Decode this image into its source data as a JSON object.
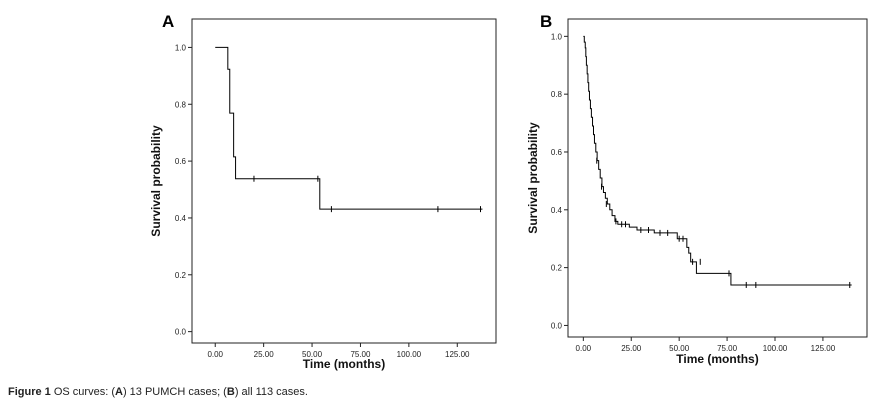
{
  "caption": {
    "label": "Figure 1",
    "text_a": " OS curves: (",
    "letter_a": "A",
    "text_b": ") 13 PUMCH cases; (",
    "letter_b": "B",
    "text_c": ") all 113 cases."
  },
  "chart_data": [
    {
      "type": "line",
      "panel_label": "A",
      "title": "",
      "xlabel": "Time (months)",
      "ylabel": "Survival probability",
      "xlim": [
        -12,
        145
      ],
      "ylim": [
        -0.04,
        1.1
      ],
      "x_ticks": [
        0,
        25,
        50,
        75,
        100,
        125
      ],
      "x_tick_labels": [
        "0.00",
        "25.00",
        "50.00",
        "75.00",
        "100.00",
        "125.00"
      ],
      "y_ticks": [
        0.0,
        0.2,
        0.4,
        0.6,
        0.8,
        1.0
      ],
      "y_tick_labels": [
        "0.0",
        "0.2",
        "0.4",
        "0.6",
        "0.8",
        "1.0"
      ],
      "grid": false,
      "color": "#000000",
      "steps": [
        {
          "x": 0,
          "y": 1.0
        },
        {
          "x": 6.5,
          "y": 0.923
        },
        {
          "x": 7.5,
          "y": 0.769
        },
        {
          "x": 9.5,
          "y": 0.615
        },
        {
          "x": 10.5,
          "y": 0.538
        },
        {
          "x": 54,
          "y": 0.431
        },
        {
          "x": 138,
          "y": 0.431
        }
      ],
      "censored": [
        {
          "x": 20,
          "y": 0.538
        },
        {
          "x": 53,
          "y": 0.538
        },
        {
          "x": 60,
          "y": 0.431
        },
        {
          "x": 115,
          "y": 0.431
        },
        {
          "x": 137,
          "y": 0.431
        }
      ]
    },
    {
      "type": "line",
      "panel_label": "B",
      "title": "",
      "xlabel": "Time (months)",
      "ylabel": "Survival probability",
      "xlim": [
        -8,
        148
      ],
      "ylim": [
        -0.04,
        1.06
      ],
      "x_ticks": [
        0,
        25,
        50,
        75,
        100,
        125
      ],
      "x_tick_labels": [
        "0.00",
        "25.00",
        "50.00",
        "75.00",
        "100.00",
        "125.00"
      ],
      "y_ticks": [
        0.0,
        0.2,
        0.4,
        0.6,
        0.8,
        1.0
      ],
      "y_tick_labels": [
        "0.0",
        "0.2",
        "0.4",
        "0.6",
        "0.8",
        "1.0"
      ],
      "grid": false,
      "color": "#000000",
      "steps": [
        {
          "x": 0,
          "y": 1.0
        },
        {
          "x": 0.5,
          "y": 0.98
        },
        {
          "x": 1,
          "y": 0.96
        },
        {
          "x": 1.3,
          "y": 0.93
        },
        {
          "x": 1.6,
          "y": 0.9
        },
        {
          "x": 2,
          "y": 0.87
        },
        {
          "x": 2.4,
          "y": 0.84
        },
        {
          "x": 2.8,
          "y": 0.81
        },
        {
          "x": 3.2,
          "y": 0.78
        },
        {
          "x": 3.7,
          "y": 0.75
        },
        {
          "x": 4.2,
          "y": 0.72
        },
        {
          "x": 4.8,
          "y": 0.69
        },
        {
          "x": 5.3,
          "y": 0.66
        },
        {
          "x": 5.8,
          "y": 0.63
        },
        {
          "x": 6.5,
          "y": 0.6
        },
        {
          "x": 7.2,
          "y": 0.57
        },
        {
          "x": 8,
          "y": 0.54
        },
        {
          "x": 8.8,
          "y": 0.51
        },
        {
          "x": 9.7,
          "y": 0.48
        },
        {
          "x": 10.5,
          "y": 0.46
        },
        {
          "x": 11.5,
          "y": 0.44
        },
        {
          "x": 12.5,
          "y": 0.42
        },
        {
          "x": 13.8,
          "y": 0.4
        },
        {
          "x": 15,
          "y": 0.38
        },
        {
          "x": 16.5,
          "y": 0.36
        },
        {
          "x": 18,
          "y": 0.35
        },
        {
          "x": 24,
          "y": 0.34
        },
        {
          "x": 28,
          "y": 0.33
        },
        {
          "x": 37,
          "y": 0.32
        },
        {
          "x": 49,
          "y": 0.3
        },
        {
          "x": 54,
          "y": 0.27
        },
        {
          "x": 55,
          "y": 0.25
        },
        {
          "x": 56,
          "y": 0.22
        },
        {
          "x": 59,
          "y": 0.18
        },
        {
          "x": 77,
          "y": 0.14
        },
        {
          "x": 140,
          "y": 0.14
        }
      ],
      "censored": [
        {
          "x": 7,
          "y": 0.57
        },
        {
          "x": 9.5,
          "y": 0.48
        },
        {
          "x": 12,
          "y": 0.42
        },
        {
          "x": 17,
          "y": 0.36
        },
        {
          "x": 20,
          "y": 0.35
        },
        {
          "x": 22,
          "y": 0.35
        },
        {
          "x": 30,
          "y": 0.33
        },
        {
          "x": 34,
          "y": 0.33
        },
        {
          "x": 40,
          "y": 0.32
        },
        {
          "x": 44,
          "y": 0.32
        },
        {
          "x": 50,
          "y": 0.3
        },
        {
          "x": 52,
          "y": 0.3
        },
        {
          "x": 57,
          "y": 0.22
        },
        {
          "x": 61,
          "y": 0.22
        },
        {
          "x": 76,
          "y": 0.18
        },
        {
          "x": 85,
          "y": 0.14
        },
        {
          "x": 90,
          "y": 0.14
        },
        {
          "x": 139,
          "y": 0.14
        }
      ]
    }
  ]
}
